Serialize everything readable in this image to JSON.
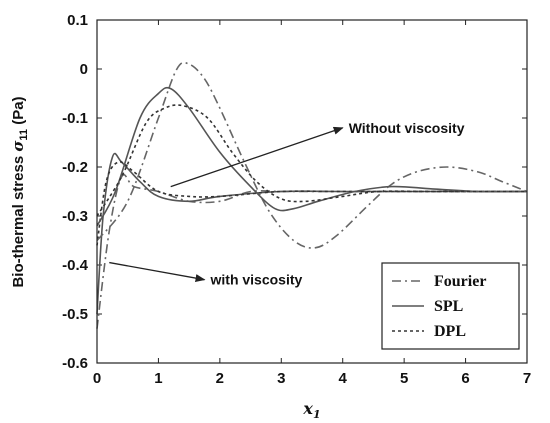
{
  "chart_data": {
    "type": "line",
    "xlabel": "x1",
    "ylabel": "Bio-thermal stress σ11 (Pa)",
    "xlim": [
      0,
      7
    ],
    "ylim": [
      -0.6,
      0.1
    ],
    "x_ticks": [
      0,
      1,
      2,
      3,
      4,
      5,
      6,
      7
    ],
    "y_ticks": [
      0.1,
      0,
      -0.1,
      -0.2,
      -0.3,
      -0.4,
      -0.5,
      -0.6
    ],
    "grid": false,
    "legend_position": "bottom-right",
    "annotations": [
      {
        "text": "Without viscosity",
        "arrow_from": [
          1.2,
          -0.24
        ],
        "arrow_to": [
          4.0,
          -0.12
        ]
      },
      {
        "text": "with viscosity",
        "arrow_from": [
          0.2,
          -0.395
        ],
        "arrow_to": [
          1.75,
          -0.43
        ]
      }
    ],
    "series": [
      {
        "name": "Fourier",
        "dash": "dashdot",
        "values": [
          [
            0,
            -0.53
          ],
          [
            0.2,
            -0.33
          ],
          [
            0.4,
            -0.22
          ],
          [
            0.6,
            -0.24
          ],
          [
            1.0,
            -0.25
          ],
          [
            1.5,
            -0.27
          ],
          [
            2.0,
            -0.27
          ],
          [
            2.5,
            -0.25
          ],
          [
            3.0,
            -0.25
          ],
          [
            3.5,
            -0.25
          ],
          [
            4.0,
            -0.25
          ],
          [
            5.0,
            -0.25
          ],
          [
            6.0,
            -0.25
          ],
          [
            7.0,
            -0.25
          ]
        ]
      },
      {
        "name": "SPL",
        "dash": "solid",
        "values": [
          [
            0,
            -0.5
          ],
          [
            0.1,
            -0.3
          ],
          [
            0.25,
            -0.18
          ],
          [
            0.4,
            -0.19
          ],
          [
            0.7,
            -0.23
          ],
          [
            1.0,
            -0.26
          ],
          [
            1.5,
            -0.27
          ],
          [
            2.0,
            -0.26
          ],
          [
            3.0,
            -0.25
          ],
          [
            4.0,
            -0.25
          ],
          [
            5.0,
            -0.25
          ],
          [
            7.0,
            -0.25
          ]
        ]
      },
      {
        "name": "DPL",
        "dash": "dotted",
        "values": [
          [
            0,
            -0.36
          ],
          [
            0.15,
            -0.23
          ],
          [
            0.35,
            -0.19
          ],
          [
            0.6,
            -0.21
          ],
          [
            1.0,
            -0.25
          ],
          [
            1.5,
            -0.26
          ],
          [
            2.0,
            -0.26
          ],
          [
            3.0,
            -0.25
          ],
          [
            4.0,
            -0.25
          ],
          [
            5.0,
            -0.25
          ],
          [
            7.0,
            -0.25
          ]
        ]
      },
      {
        "name": "Fourier",
        "dash": "dashdot",
        "values": [
          [
            0,
            -0.35
          ],
          [
            0.5,
            -0.27
          ],
          [
            1.0,
            -0.1
          ],
          [
            1.3,
            0.0
          ],
          [
            1.5,
            0.01
          ],
          [
            1.75,
            -0.02
          ],
          [
            2.0,
            -0.08
          ],
          [
            2.4,
            -0.19
          ],
          [
            2.8,
            -0.29
          ],
          [
            3.2,
            -0.35
          ],
          [
            3.55,
            -0.365
          ],
          [
            3.9,
            -0.34
          ],
          [
            4.4,
            -0.28
          ],
          [
            4.8,
            -0.235
          ],
          [
            5.2,
            -0.21
          ],
          [
            5.7,
            -0.2
          ],
          [
            6.2,
            -0.21
          ],
          [
            6.6,
            -0.23
          ],
          [
            7.0,
            -0.25
          ]
        ]
      },
      {
        "name": "SPL",
        "dash": "solid",
        "values": [
          [
            0,
            -0.32
          ],
          [
            0.3,
            -0.25
          ],
          [
            0.7,
            -0.1
          ],
          [
            1.0,
            -0.05
          ],
          [
            1.2,
            -0.04
          ],
          [
            1.5,
            -0.08
          ],
          [
            2.0,
            -0.17
          ],
          [
            2.5,
            -0.24
          ],
          [
            2.9,
            -0.285
          ],
          [
            3.2,
            -0.285
          ],
          [
            3.6,
            -0.27
          ],
          [
            4.2,
            -0.25
          ],
          [
            4.8,
            -0.24
          ],
          [
            5.5,
            -0.245
          ],
          [
            6.2,
            -0.25
          ],
          [
            7.0,
            -0.25
          ]
        ]
      },
      {
        "name": "DPL",
        "dash": "dotted",
        "values": [
          [
            0,
            -0.3
          ],
          [
            0.4,
            -0.22
          ],
          [
            0.8,
            -0.11
          ],
          [
            1.1,
            -0.08
          ],
          [
            1.4,
            -0.075
          ],
          [
            1.8,
            -0.1
          ],
          [
            2.2,
            -0.17
          ],
          [
            2.6,
            -0.23
          ],
          [
            3.0,
            -0.265
          ],
          [
            3.4,
            -0.27
          ],
          [
            4.0,
            -0.26
          ],
          [
            4.6,
            -0.25
          ],
          [
            5.5,
            -0.25
          ],
          [
            7.0,
            -0.25
          ]
        ]
      }
    ]
  }
}
